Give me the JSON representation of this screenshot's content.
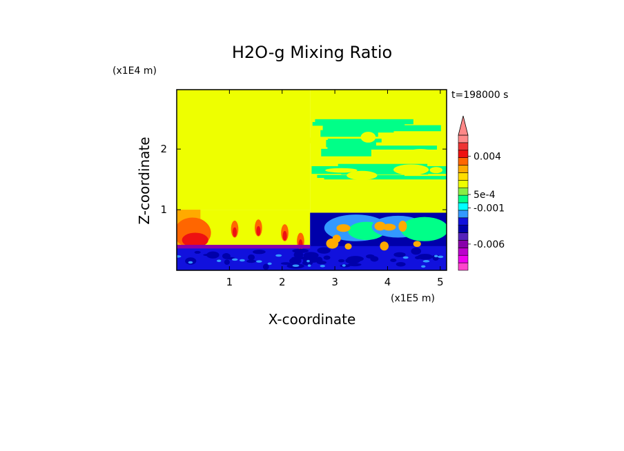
{
  "chart_data": {
    "type": "heatmap",
    "title": "H2O-g Mixing Ratio",
    "xlabel": "X-coordinate",
    "ylabel": "Z-coordinate",
    "x_scale_label": "(x1E5 m)",
    "y_scale_label": "(x1E4 m)",
    "time_label": "t=198000 s",
    "xlim": [
      0,
      5.12
    ],
    "ylim": [
      0,
      2.98
    ],
    "x_ticks": [
      "1",
      "2",
      "3",
      "4",
      "5"
    ],
    "x_tick_values": [
      1,
      2,
      3,
      4,
      5
    ],
    "y_ticks": [
      "1",
      "2"
    ],
    "y_tick_values": [
      1,
      2
    ],
    "colorbar": {
      "colors": [
        "#ff44cc",
        "#ee00ee",
        "#bb00cc",
        "#8800aa",
        "#5522bb",
        "#0000aa",
        "#1111dd",
        "#3399ff",
        "#00ffff",
        "#00ff88",
        "#88ee44",
        "#eeff00",
        "#ffdd00",
        "#ffaa00",
        "#ff6600",
        "#ee1111",
        "#ee3333",
        "#ff8888"
      ],
      "labels": [
        "-0.006",
        "-0.001",
        "5e-4",
        "0.004"
      ],
      "label_positions": [
        3.5,
        8.3,
        10.1,
        15.2
      ],
      "overflow_arrow": "top"
    },
    "regions": [
      {
        "name": "upper-left",
        "x": [
          0,
          2.53
        ],
        "z": [
          1.0,
          2.98
        ],
        "color": "#eeff00"
      },
      {
        "name": "upper-right",
        "x": [
          2.53,
          5.12
        ],
        "z": [
          0.95,
          2.98
        ],
        "color": "#eeff00",
        "bands": "#00ff88"
      },
      {
        "name": "mid-left",
        "x": [
          0,
          2.53
        ],
        "z": [
          0.4,
          1.0
        ],
        "color": "#eeff00",
        "features": [
          "#ff6600",
          "#ee1111"
        ]
      },
      {
        "name": "mid-right",
        "x": [
          2.53,
          5.12
        ],
        "z": [
          0.3,
          0.95
        ],
        "color": "#0000aa",
        "features": [
          "#3399ff",
          "#00ff88",
          "#ffaa00"
        ]
      },
      {
        "name": "surface-layer",
        "x": [
          0,
          5.12
        ],
        "z": [
          0,
          0.4
        ],
        "color": "#1111dd",
        "features": [
          "#8800aa",
          "#0000aa"
        ]
      }
    ]
  }
}
